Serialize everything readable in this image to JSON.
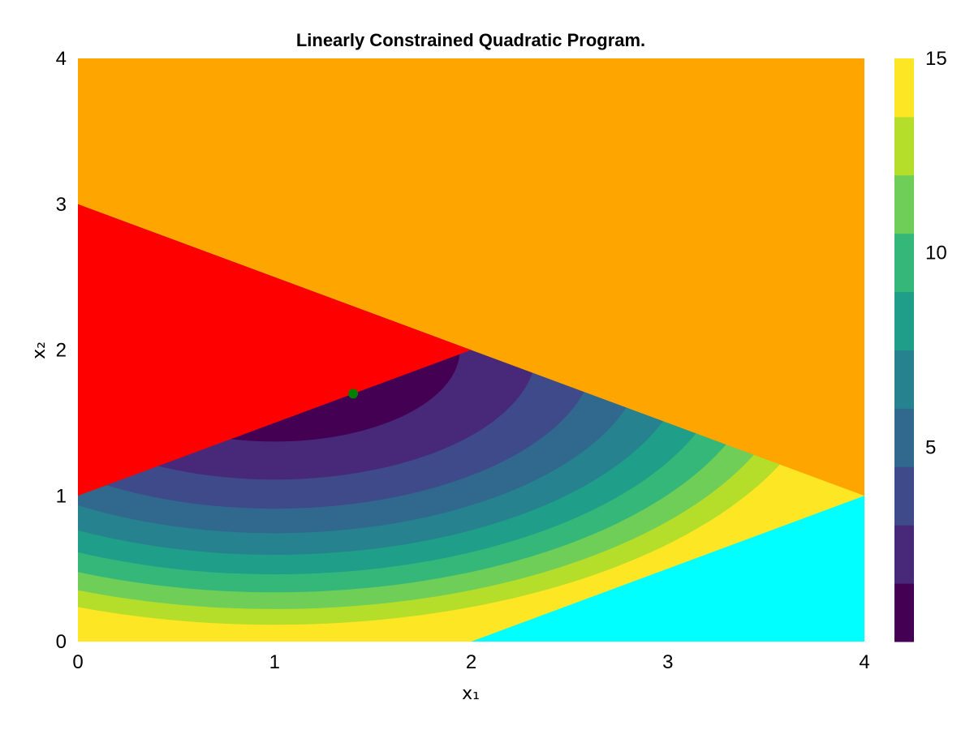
{
  "chart_data": {
    "type": "heatmap",
    "title": "Linearly Constrained Quadratic Program.",
    "xlabel": "x₁",
    "ylabel": "x₂",
    "xlim": [
      0,
      4
    ],
    "ylim": [
      0,
      4
    ],
    "x_ticks": [
      "0",
      "1",
      "2",
      "3",
      "4"
    ],
    "y_ticks": [
      "0",
      "1",
      "2",
      "3",
      "4"
    ],
    "objective_center": [
      1,
      2
    ],
    "contour_levels": [
      1.5,
      3,
      4.5,
      6,
      7.5,
      9,
      10.5,
      12,
      13.5
    ],
    "constraints": [
      {
        "region": "x₂ > 3 − x₁/2",
        "color": "#FFA500"
      },
      {
        "region": "x₂ > 1 + x₁/2",
        "color": "#FF0000"
      },
      {
        "region": "x₂ < x₁/2 − 1",
        "color": "#00FFFF"
      }
    ],
    "optimum": {
      "x": 1.4,
      "y": 1.7,
      "color": "#008000"
    },
    "colorbar": {
      "ticks": [
        "5",
        "10",
        "15"
      ],
      "tick_values": [
        5,
        10,
        15
      ],
      "range": [
        0,
        15
      ],
      "colors": [
        "#440154",
        "#482878",
        "#3E4A89",
        "#31688E",
        "#26828E",
        "#1F9E89",
        "#35B779",
        "#6ECE58",
        "#B5DE2B",
        "#FDE725"
      ]
    }
  }
}
